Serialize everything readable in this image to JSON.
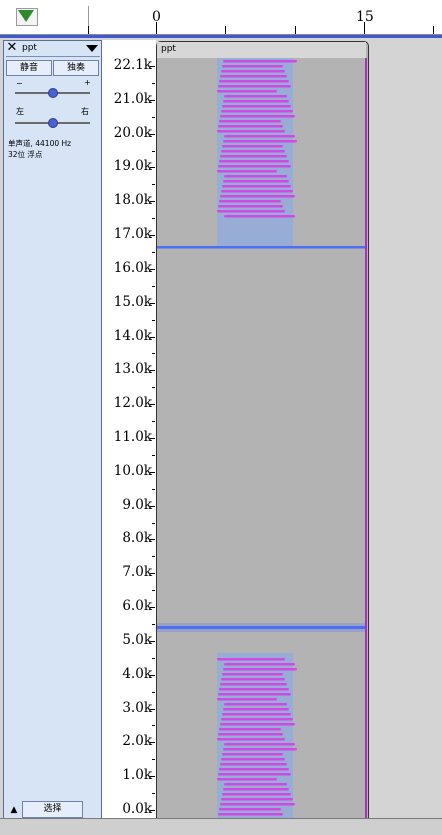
{
  "ruler": {
    "labels": [
      "0",
      "15"
    ]
  },
  "track": {
    "name": "ppt",
    "mute_label": "静音",
    "solo_label": "独奏",
    "gain_minus": "−",
    "gain_plus": "+",
    "pan_left": "左",
    "pan_right": "右",
    "info_line1": "单声道, 44100 Hz",
    "info_line2": "32位 浮点",
    "select_label": "选择",
    "close_glyph": "✕",
    "collapse_glyph": "▲"
  },
  "clip": {
    "name": "ppt"
  },
  "frequency_axis": {
    "labels": [
      "22.1k",
      "21.0k",
      "20.0k",
      "19.0k",
      "18.0k",
      "17.0k",
      "16.0k",
      "15.0k",
      "14.0k",
      "13.0k",
      "12.0k",
      "11.0k",
      "10.0k",
      "9.0k",
      "8.0k",
      "7.0k",
      "6.0k",
      "5.0k",
      "4.0k",
      "3.0k",
      "2.0k",
      "1.0k",
      "0.0k"
    ]
  },
  "colors": {
    "track_border": "#3f5ad1",
    "spectrogram_bg": "#b3b3b3",
    "tone_line": "#4d6ef5",
    "pattern_magenta": "#d53ee6",
    "pattern_blue": "#7fa8f0",
    "play_green": "#2d8a2d"
  },
  "icons": {
    "play_marker": "triangle-down-icon",
    "close": "close-icon",
    "menu": "chevron-down-icon",
    "collapse": "collapse-up-icon"
  }
}
